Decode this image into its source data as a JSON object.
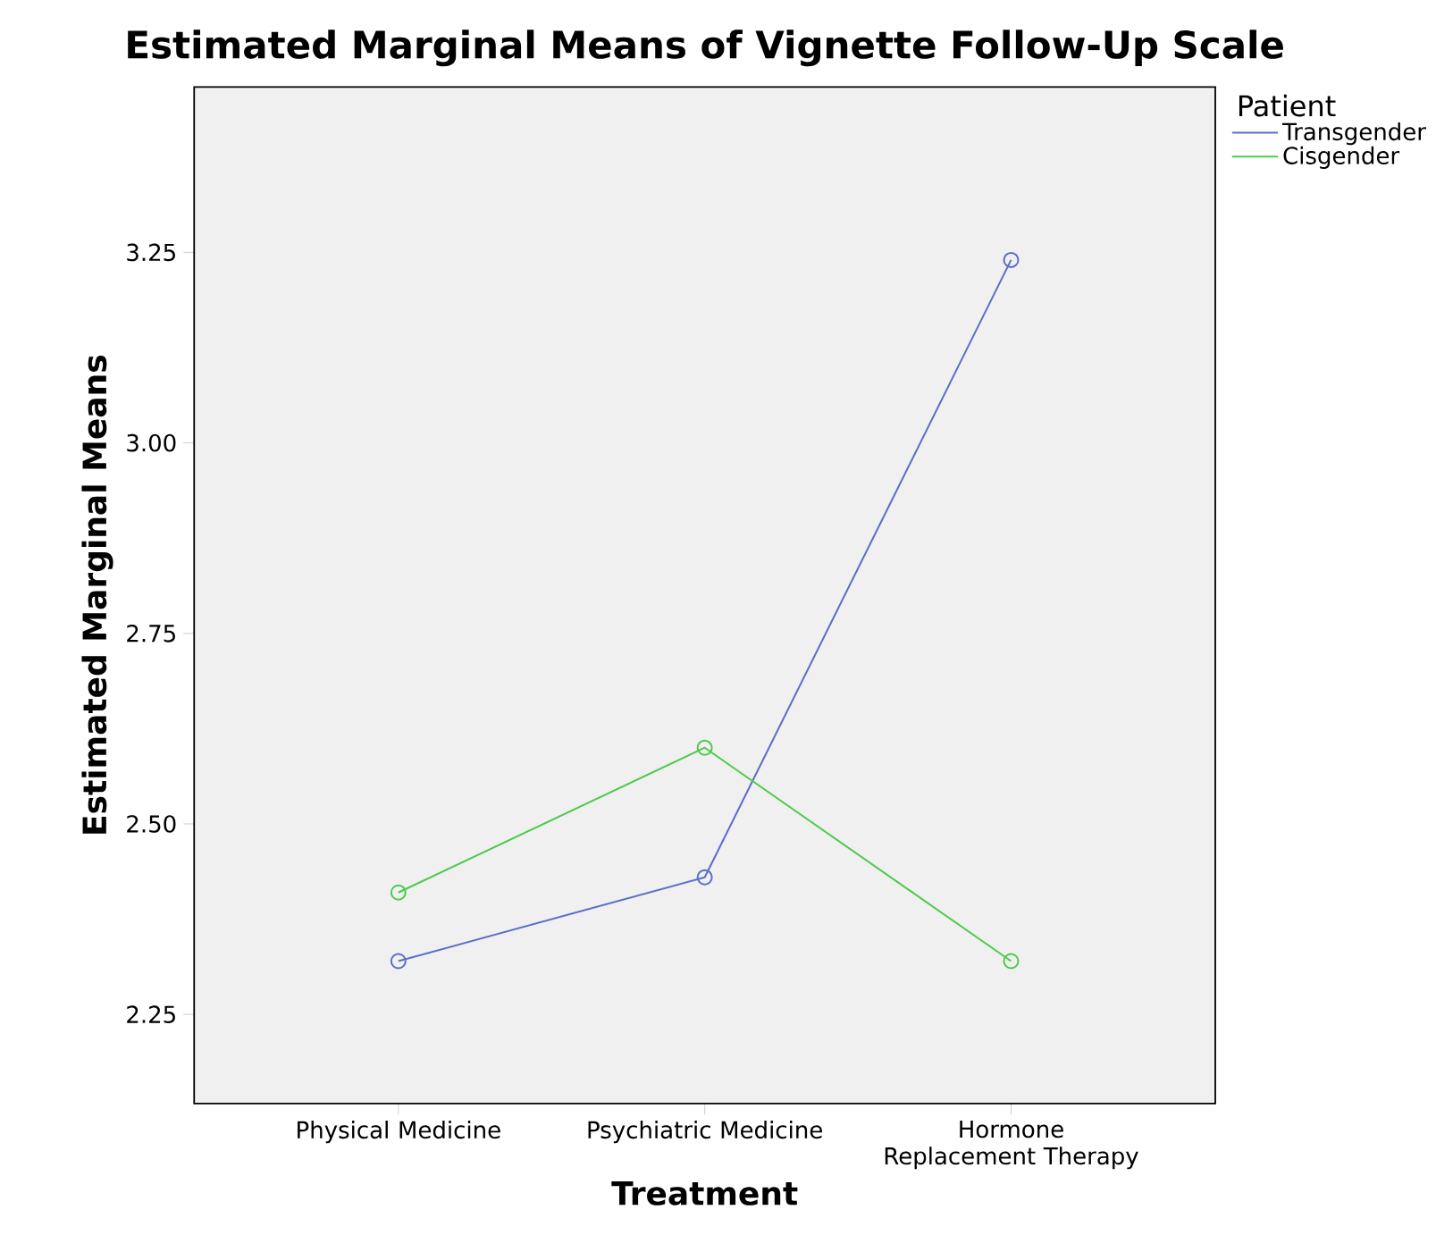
{
  "chart_data": {
    "type": "line",
    "title": "Estimated Marginal Means of Vignette Follow-Up Scale",
    "xlabel": "Treatment",
    "ylabel": "Estimated Marginal Means",
    "legend_title": "Patient",
    "categories": [
      "Physical Medicine",
      "Psychiatric Medicine",
      "Hormone Replacement Therapy"
    ],
    "series": [
      {
        "name": "Transgender",
        "color": "#5a6ec8",
        "values": [
          2.32,
          2.43,
          3.24
        ]
      },
      {
        "name": "Cisgender",
        "color": "#4ec94e",
        "values": [
          2.41,
          2.6,
          2.32
        ]
      }
    ],
    "ylim": [
      2.133,
      3.467
    ],
    "yticks": [
      {
        "value": 2.25,
        "label": "2.25"
      },
      {
        "value": 2.5,
        "label": "2.50"
      },
      {
        "value": 2.75,
        "label": "2.75"
      },
      {
        "value": 3.0,
        "label": "3.00"
      },
      {
        "value": 3.25,
        "label": "3.25"
      }
    ],
    "grid": false,
    "legend": "top right",
    "marker": "circle",
    "line_style": "solid"
  }
}
